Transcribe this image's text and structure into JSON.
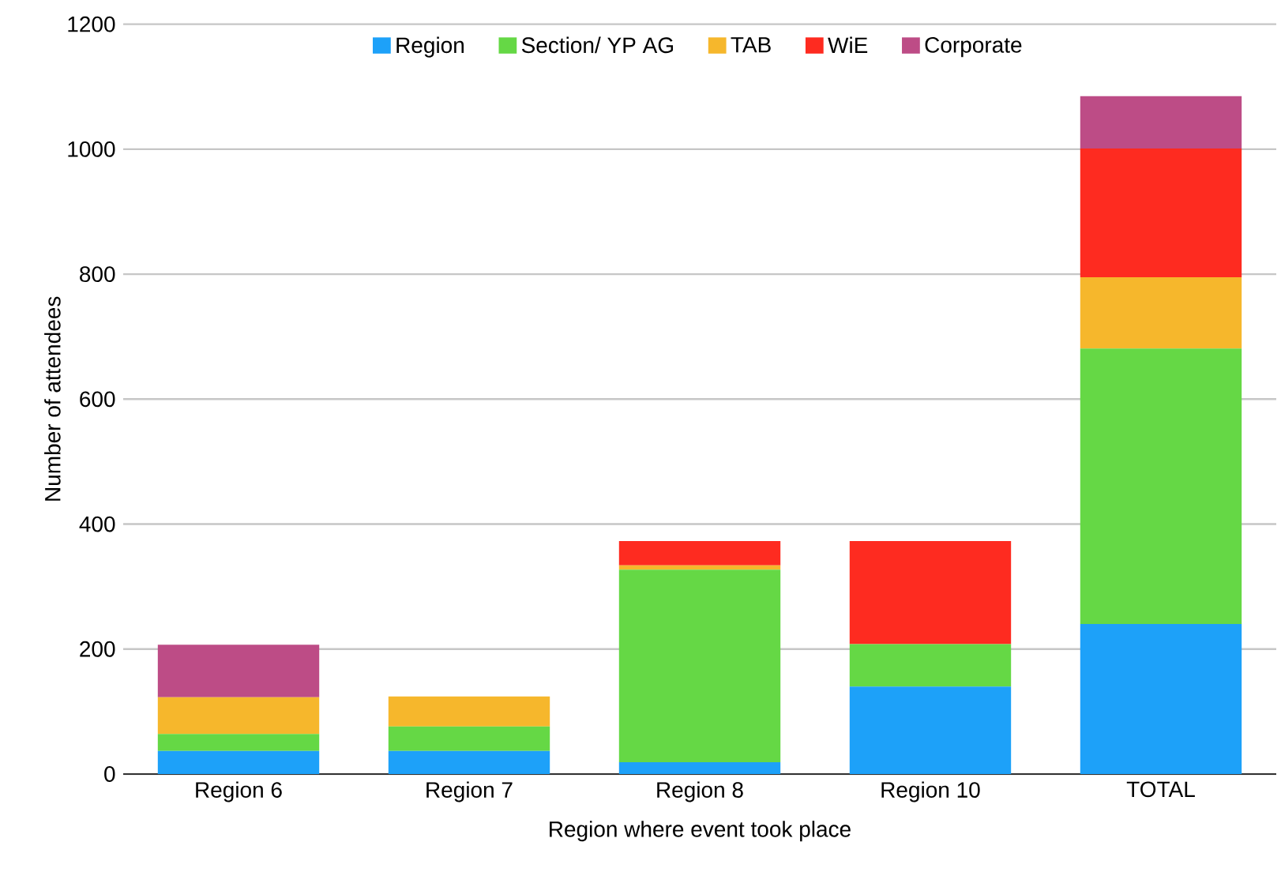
{
  "chart_data": {
    "type": "bar",
    "stacked": true,
    "xlabel": "Region where event took place",
    "ylabel": "Number of attendees",
    "categories": [
      "Region 6",
      "Region 7",
      "Region 8",
      "Region 10",
      "TOTAL"
    ],
    "series": [
      {
        "name": "Region",
        "color": "#1da1f9",
        "values": [
          37,
          37,
          19,
          140,
          240
        ]
      },
      {
        "name": "Section/ YP AG",
        "color": "#65d845",
        "values": [
          27,
          39,
          308,
          68,
          441
        ]
      },
      {
        "name": "TAB",
        "color": "#f6b72c",
        "values": [
          59,
          48,
          7,
          null,
          114
        ]
      },
      {
        "name": "WiE",
        "color": "#fe2b20",
        "values": [
          null,
          null,
          39,
          165,
          206
        ]
      },
      {
        "name": "Corporate",
        "color": "#bd4c86",
        "values": [
          84,
          null,
          null,
          null,
          84
        ]
      }
    ],
    "ylim": [
      0,
      1200
    ],
    "yticks": [
      0,
      200,
      400,
      600,
      800,
      1000,
      1200
    ],
    "grid": "y",
    "legend": "top"
  }
}
